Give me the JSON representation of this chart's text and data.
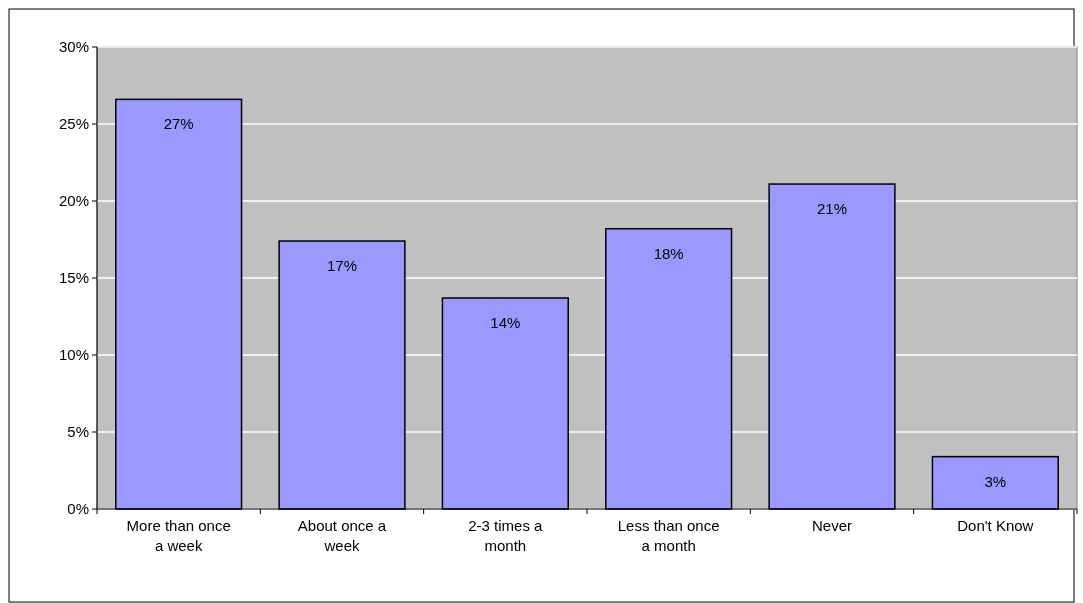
{
  "chart_data": {
    "type": "bar",
    "categories": [
      "More than once a week",
      "About once a week",
      "2-3 times a month",
      "Less than once a month",
      "Never",
      "Don't Know"
    ],
    "values": [
      26.6,
      17.4,
      13.7,
      18.2,
      21.1,
      3.4
    ],
    "value_labels": [
      "27%",
      "17%",
      "14%",
      "18%",
      "21%",
      "3%"
    ],
    "color": "#9999ff",
    "ylim": [
      0,
      30
    ],
    "yticks": [
      {
        "value": 0,
        "label": "0%"
      },
      {
        "value": 5,
        "label": "5%"
      },
      {
        "value": 10,
        "label": "10%"
      },
      {
        "value": 15,
        "label": "15%"
      },
      {
        "value": 20,
        "label": "20%"
      },
      {
        "value": 25,
        "label": "25%"
      },
      {
        "value": 30,
        "label": "30%"
      }
    ],
    "grid": "y"
  }
}
